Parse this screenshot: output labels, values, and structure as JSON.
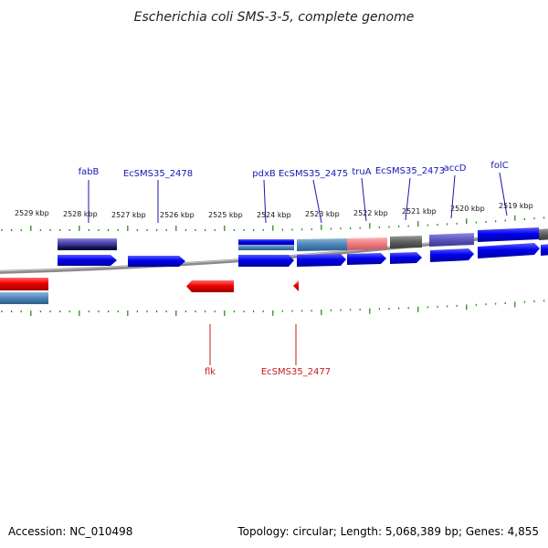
{
  "title": "Escherichia coli SMS-3-5, complete genome",
  "footer": {
    "accession": "Accession: NC_010498",
    "summary": "Topology: circular; Length: 5,068,389 bp; Genes: 4,855"
  },
  "colors": {
    "forward_cds": "#0000ee",
    "reverse_cds": "#ee0000",
    "forward_label": "#1515b5",
    "reverse_label": "#c41a1a",
    "tick": "#2b8a1f",
    "backbone": "#8a8a8a"
  },
  "kbp_labels": [
    "2529 kbp",
    "2528 kbp",
    "2527 kbp",
    "2526 kbp",
    "2525 kbp",
    "2524 kbp",
    "2523 kbp",
    "2522 kbp",
    "2521 kbp",
    "2520 kbp",
    "2519 kbp"
  ],
  "forward_gene_labels": [
    "fabB",
    "EcSMS35_2478",
    "pdxB",
    "EcSMS35_2475",
    "truA",
    "EcSMS35_2473",
    "accD",
    "folC"
  ],
  "reverse_gene_labels": [
    "flk",
    "EcSMS35_2477"
  ]
}
